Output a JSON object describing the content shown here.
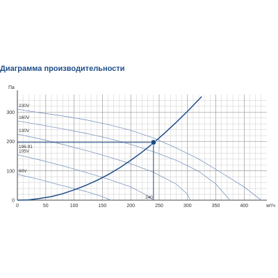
{
  "title": "Диаграмма производительности",
  "colors": {
    "grid": "#cccccc",
    "grid_major": "#999999",
    "fan_curve": "#7d97bf",
    "system_curve": "#1c4a88",
    "operating_point": "#1c4a88"
  },
  "chart_data": {
    "type": "line",
    "title": "Диаграмма производительности",
    "xlabel": "м³/ч",
    "ylabel": "Па",
    "xlim": [
      0,
      440
    ],
    "ylim": [
      0,
      360
    ],
    "x_ticks": [
      0,
      50,
      100,
      150,
      200,
      250,
      300,
      350,
      400
    ],
    "y_ticks": [
      0,
      100,
      200,
      300
    ],
    "grid": true,
    "series": [
      {
        "name": "230V",
        "role": "fan",
        "points": [
          [
            0,
            310
          ],
          [
            40,
            298
          ],
          [
            80,
            287
          ],
          [
            120,
            274
          ],
          [
            160,
            258
          ],
          [
            200,
            238
          ],
          [
            240,
            212
          ],
          [
            280,
            178
          ],
          [
            320,
            140
          ],
          [
            360,
            93
          ],
          [
            400,
            45
          ],
          [
            430,
            0
          ]
        ]
      },
      {
        "name": "160V",
        "role": "fan",
        "points": [
          [
            0,
            270
          ],
          [
            40,
            257
          ],
          [
            80,
            243
          ],
          [
            120,
            228
          ],
          [
            160,
            211
          ],
          [
            200,
            190
          ],
          [
            240,
            165
          ],
          [
            280,
            136
          ],
          [
            320,
            98
          ],
          [
            350,
            55
          ],
          [
            375,
            0
          ]
        ]
      },
      {
        "name": "130V",
        "role": "fan",
        "points": [
          [
            0,
            225
          ],
          [
            40,
            209
          ],
          [
            80,
            190
          ],
          [
            120,
            170
          ],
          [
            160,
            148
          ],
          [
            200,
            124
          ],
          [
            240,
            95
          ],
          [
            280,
            55
          ],
          [
            300,
            20
          ],
          [
            305,
            0
          ]
        ]
      },
      {
        "name": "105V",
        "role": "fan",
        "points": [
          [
            0,
            155
          ],
          [
            40,
            137
          ],
          [
            80,
            117
          ],
          [
            120,
            95
          ],
          [
            160,
            72
          ],
          [
            200,
            45
          ],
          [
            230,
            15
          ],
          [
            240,
            0
          ]
        ]
      },
      {
        "name": "80V",
        "role": "fan",
        "points": [
          [
            0,
            88
          ],
          [
            40,
            70
          ],
          [
            80,
            49
          ],
          [
            120,
            30
          ],
          [
            150,
            12
          ],
          [
            165,
            0
          ]
        ]
      },
      {
        "name": "",
        "role": "system",
        "points": [
          [
            0,
            0
          ],
          [
            20,
            1
          ],
          [
            40,
            6
          ],
          [
            60,
            12
          ],
          [
            80,
            22
          ],
          [
            100,
            35
          ],
          [
            120,
            50
          ],
          [
            140,
            67
          ],
          [
            160,
            87
          ],
          [
            180,
            110
          ],
          [
            200,
            136
          ],
          [
            220,
            164
          ],
          [
            240,
            195
          ],
          [
            260,
            229
          ],
          [
            280,
            265
          ],
          [
            300,
            303
          ],
          [
            325,
            353
          ]
        ]
      }
    ],
    "operating_point": {
      "x": 240,
      "y": 196.91,
      "x_label": "240",
      "y_label": "196.91"
    }
  }
}
